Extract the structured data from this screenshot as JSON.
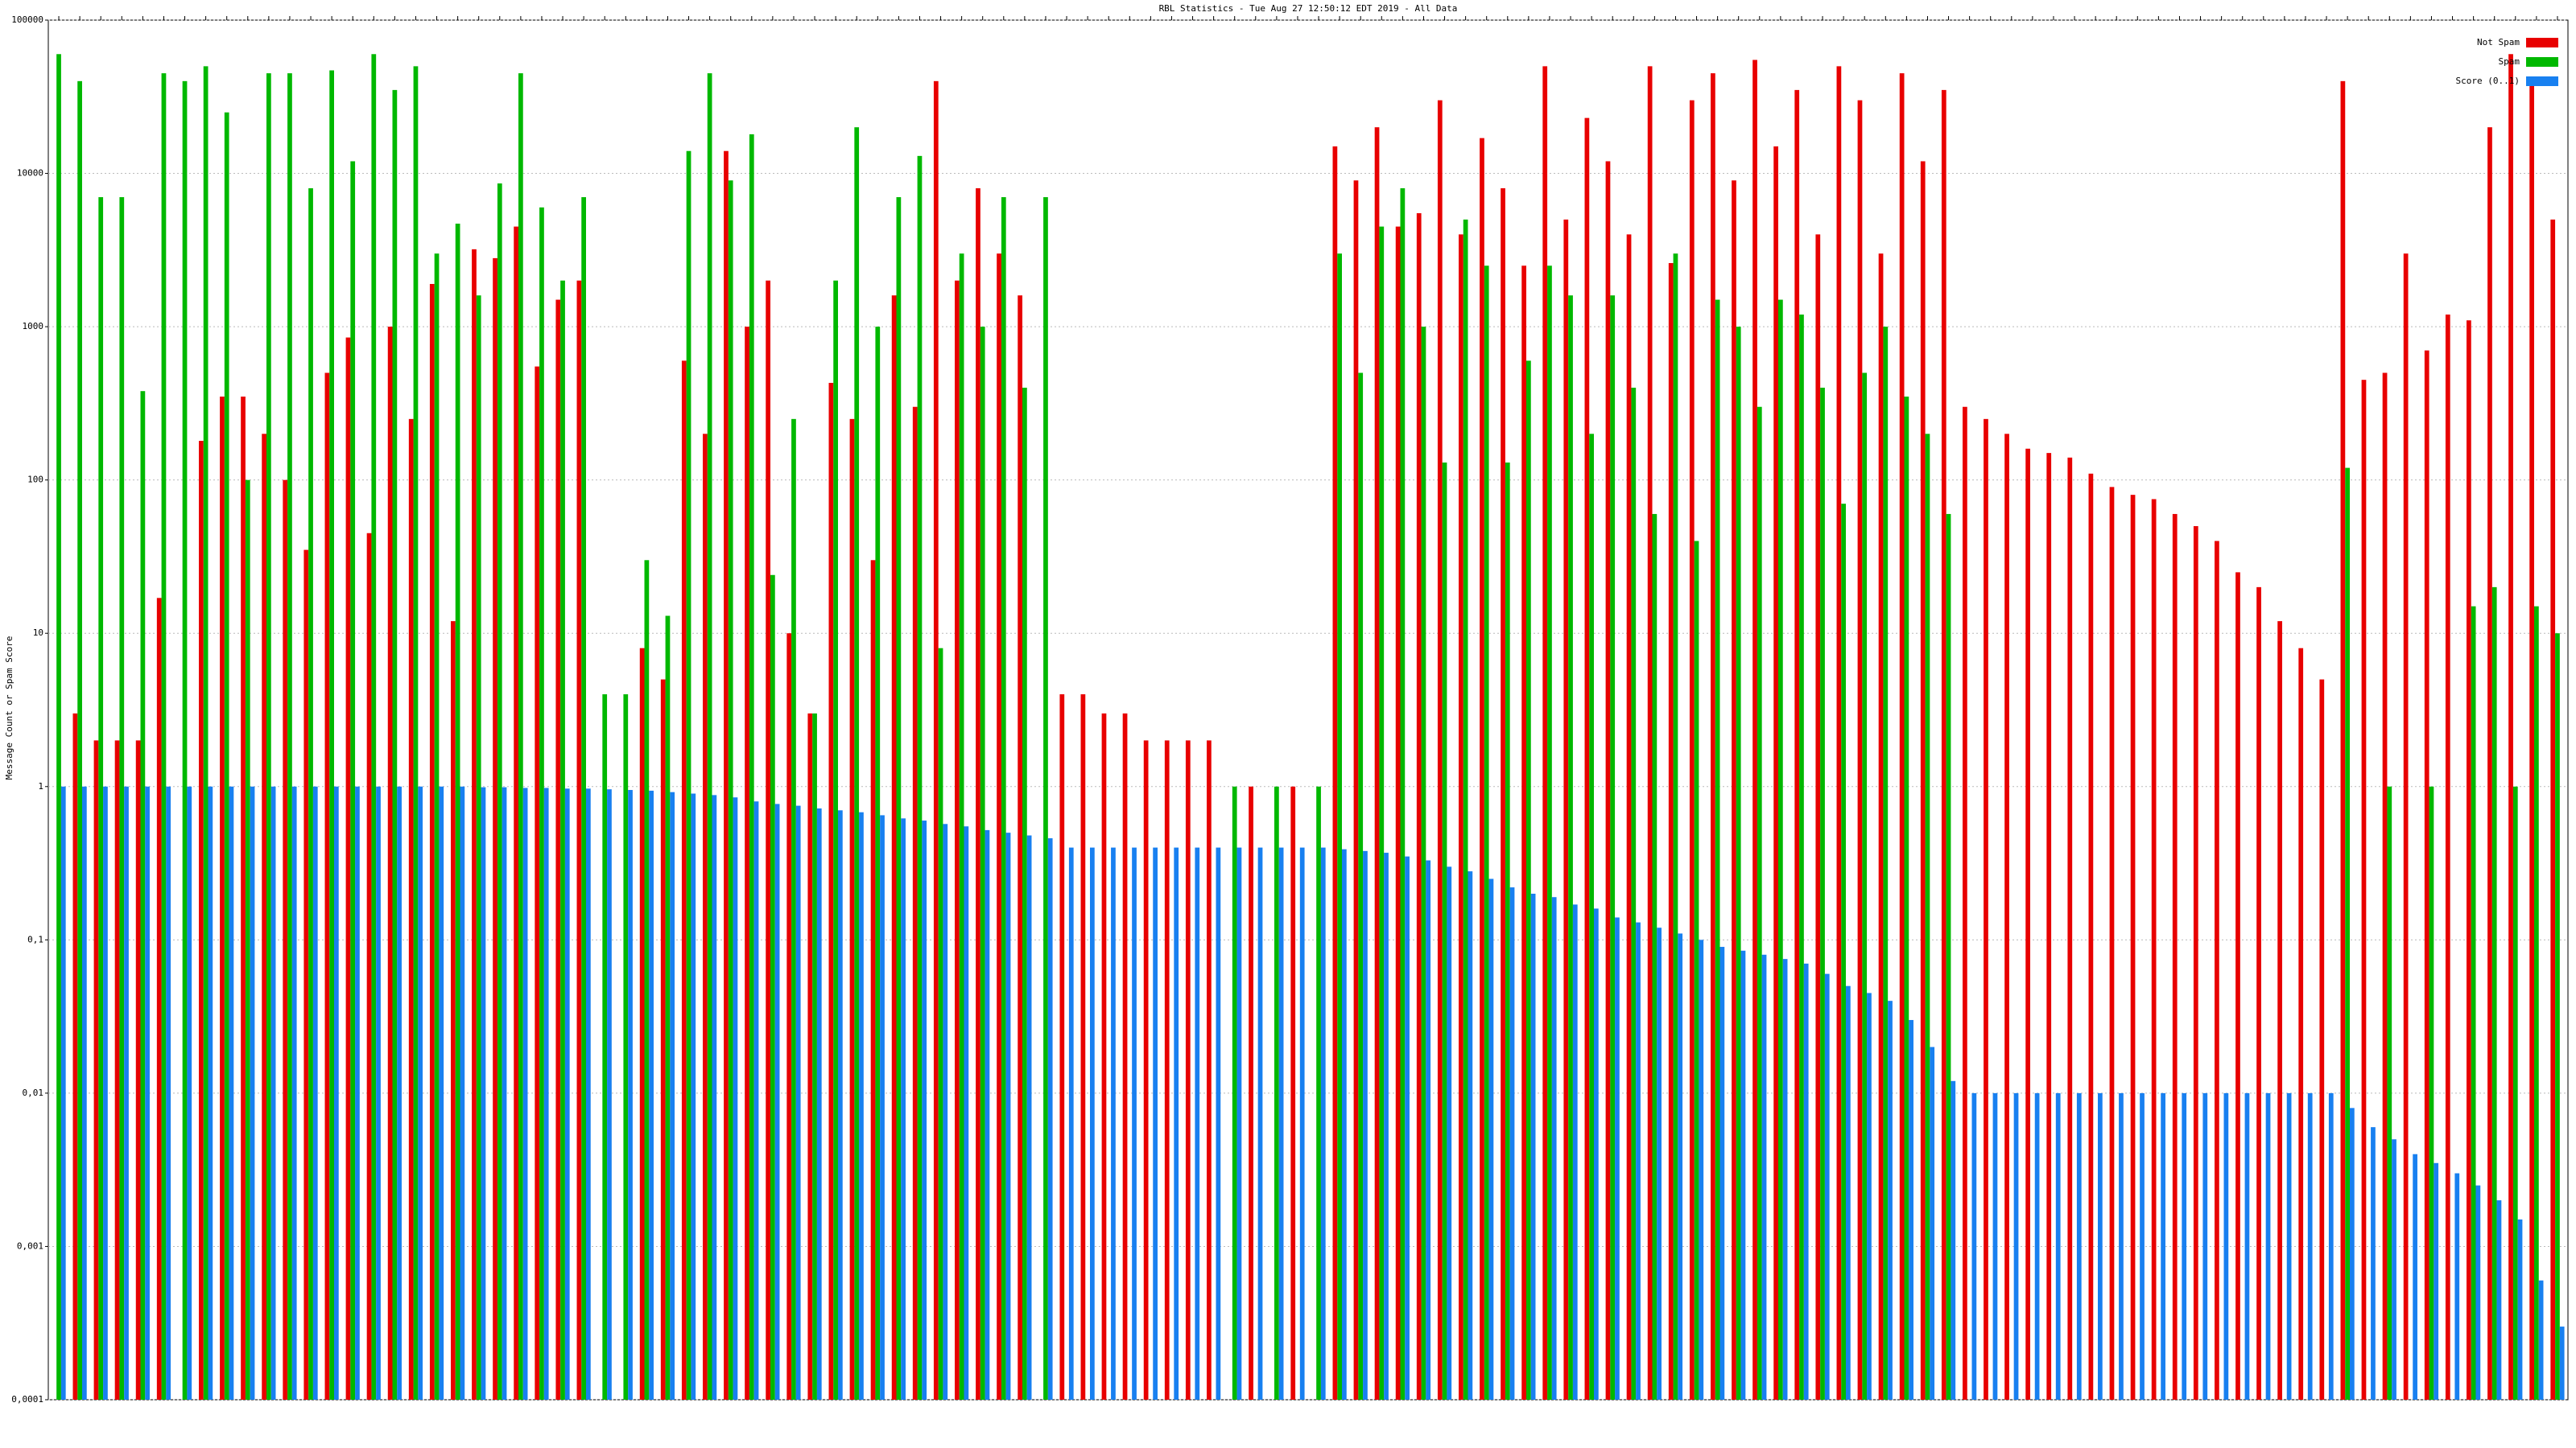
{
  "chart_data": {
    "type": "bar",
    "title": "RBL Statistics - Tue Aug 27 12:50:12 EDT 2019 - All Data",
    "y_label": "Message Count or Spam Score",
    "log": true,
    "grid": true,
    "legend": "top-right",
    "ylim": [
      0.0001,
      100000
    ],
    "yticks": [
      {
        "value": 0.0001,
        "label": "0,0001"
      },
      {
        "value": 0.001,
        "label": "0,001"
      },
      {
        "value": 0.01,
        "label": "0,01"
      },
      {
        "value": 0.1,
        "label": "0,1"
      },
      1,
      10,
      100,
      1000,
      10000,
      100000
    ],
    "series": [
      {
        "name": "Not Spam",
        "color": "#e80000",
        "values": [
          null,
          3,
          2,
          2,
          2,
          17,
          null,
          180,
          350,
          350,
          200,
          100,
          35,
          500,
          850,
          45,
          1000,
          250,
          1900,
          12,
          3200,
          2800,
          4500,
          550,
          1500,
          2000,
          null,
          null,
          8,
          5,
          600,
          200,
          14000,
          1000,
          2000,
          10,
          3,
          430,
          250,
          30,
          1600,
          300,
          40000,
          2000,
          8000,
          3000,
          1600,
          null,
          4,
          4,
          3,
          3,
          2,
          2,
          2,
          2,
          null,
          1,
          null,
          1,
          null,
          15000,
          9000,
          20000,
          4500,
          5500,
          30000,
          4000,
          17000,
          8000,
          2500,
          50000,
          5000,
          23000,
          12000,
          4000,
          50000,
          2600,
          30000,
          45000,
          9000,
          55000,
          15000,
          35000,
          4000,
          50000,
          30000,
          3000,
          45000,
          12000,
          35000,
          300,
          250,
          200,
          160,
          150,
          140,
          110,
          90,
          80,
          75,
          60,
          50,
          40,
          25,
          20,
          12,
          8,
          5,
          40000,
          450,
          500,
          3000,
          700,
          1200,
          1100,
          20000,
          60000,
          40000,
          5000
        ]
      },
      {
        "name": "Spam",
        "color": "#00b800",
        "values": [
          60000,
          40000,
          7000,
          7000,
          380,
          45000,
          40000,
          50000,
          25000,
          100,
          45000,
          45000,
          8000,
          47000,
          12000,
          60000,
          35000,
          50000,
          3000,
          4700,
          1600,
          8600,
          45000,
          6000,
          2000,
          7000,
          4,
          4,
          30,
          13,
          14000,
          45000,
          9000,
          18000,
          24,
          250,
          3,
          2000,
          20000,
          1000,
          7000,
          13000,
          8,
          3000,
          1000,
          7000,
          400,
          7000,
          null,
          null,
          null,
          null,
          null,
          null,
          null,
          null,
          1,
          null,
          1,
          null,
          1,
          3000,
          500,
          4500,
          8000,
          1000,
          130,
          5000,
          2500,
          130,
          600,
          2500,
          1600,
          200,
          1600,
          400,
          60,
          3000,
          40,
          1500,
          1000,
          300,
          1500,
          1200,
          400,
          70,
          500,
          1000,
          350,
          200,
          60,
          null,
          null,
          null,
          null,
          null,
          null,
          null,
          null,
          null,
          null,
          null,
          null,
          null,
          null,
          null,
          null,
          null,
          null,
          120,
          null,
          1,
          null,
          1,
          null,
          15,
          20,
          1,
          15,
          10
        ]
      },
      {
        "name": "Score (0..1)",
        "color": "#1880f0",
        "values": [
          1,
          1,
          1,
          1,
          1,
          1,
          1,
          1,
          1,
          1,
          1,
          1,
          1,
          1,
          1,
          1,
          1,
          1,
          1,
          1,
          0.99,
          0.99,
          0.98,
          0.98,
          0.97,
          0.97,
          0.96,
          0.95,
          0.94,
          0.92,
          0.9,
          0.88,
          0.85,
          0.8,
          0.77,
          0.75,
          0.72,
          0.7,
          0.68,
          0.65,
          0.62,
          0.6,
          0.57,
          0.55,
          0.52,
          0.5,
          0.48,
          0.46,
          0.4,
          0.4,
          0.4,
          0.4,
          0.4,
          0.4,
          0.4,
          0.4,
          0.4,
          0.4,
          0.4,
          0.4,
          0.4,
          0.39,
          0.38,
          0.37,
          0.35,
          0.33,
          0.3,
          0.28,
          0.25,
          0.22,
          0.2,
          0.19,
          0.17,
          0.16,
          0.14,
          0.13,
          0.12,
          0.11,
          0.1,
          0.09,
          0.085,
          0.08,
          0.075,
          0.07,
          0.06,
          0.05,
          0.045,
          0.04,
          0.03,
          0.02,
          0.012,
          0.01,
          0.01,
          0.01,
          0.01,
          0.01,
          0.01,
          0.01,
          0.01,
          0.01,
          0.01,
          0.01,
          0.01,
          0.01,
          0.01,
          0.01,
          0.01,
          0.01,
          0.01,
          0.008,
          0.006,
          0.005,
          0.004,
          0.0035,
          0.003,
          0.0025,
          0.002,
          0.0015,
          0.0006,
          0.0003
        ]
      }
    ]
  }
}
